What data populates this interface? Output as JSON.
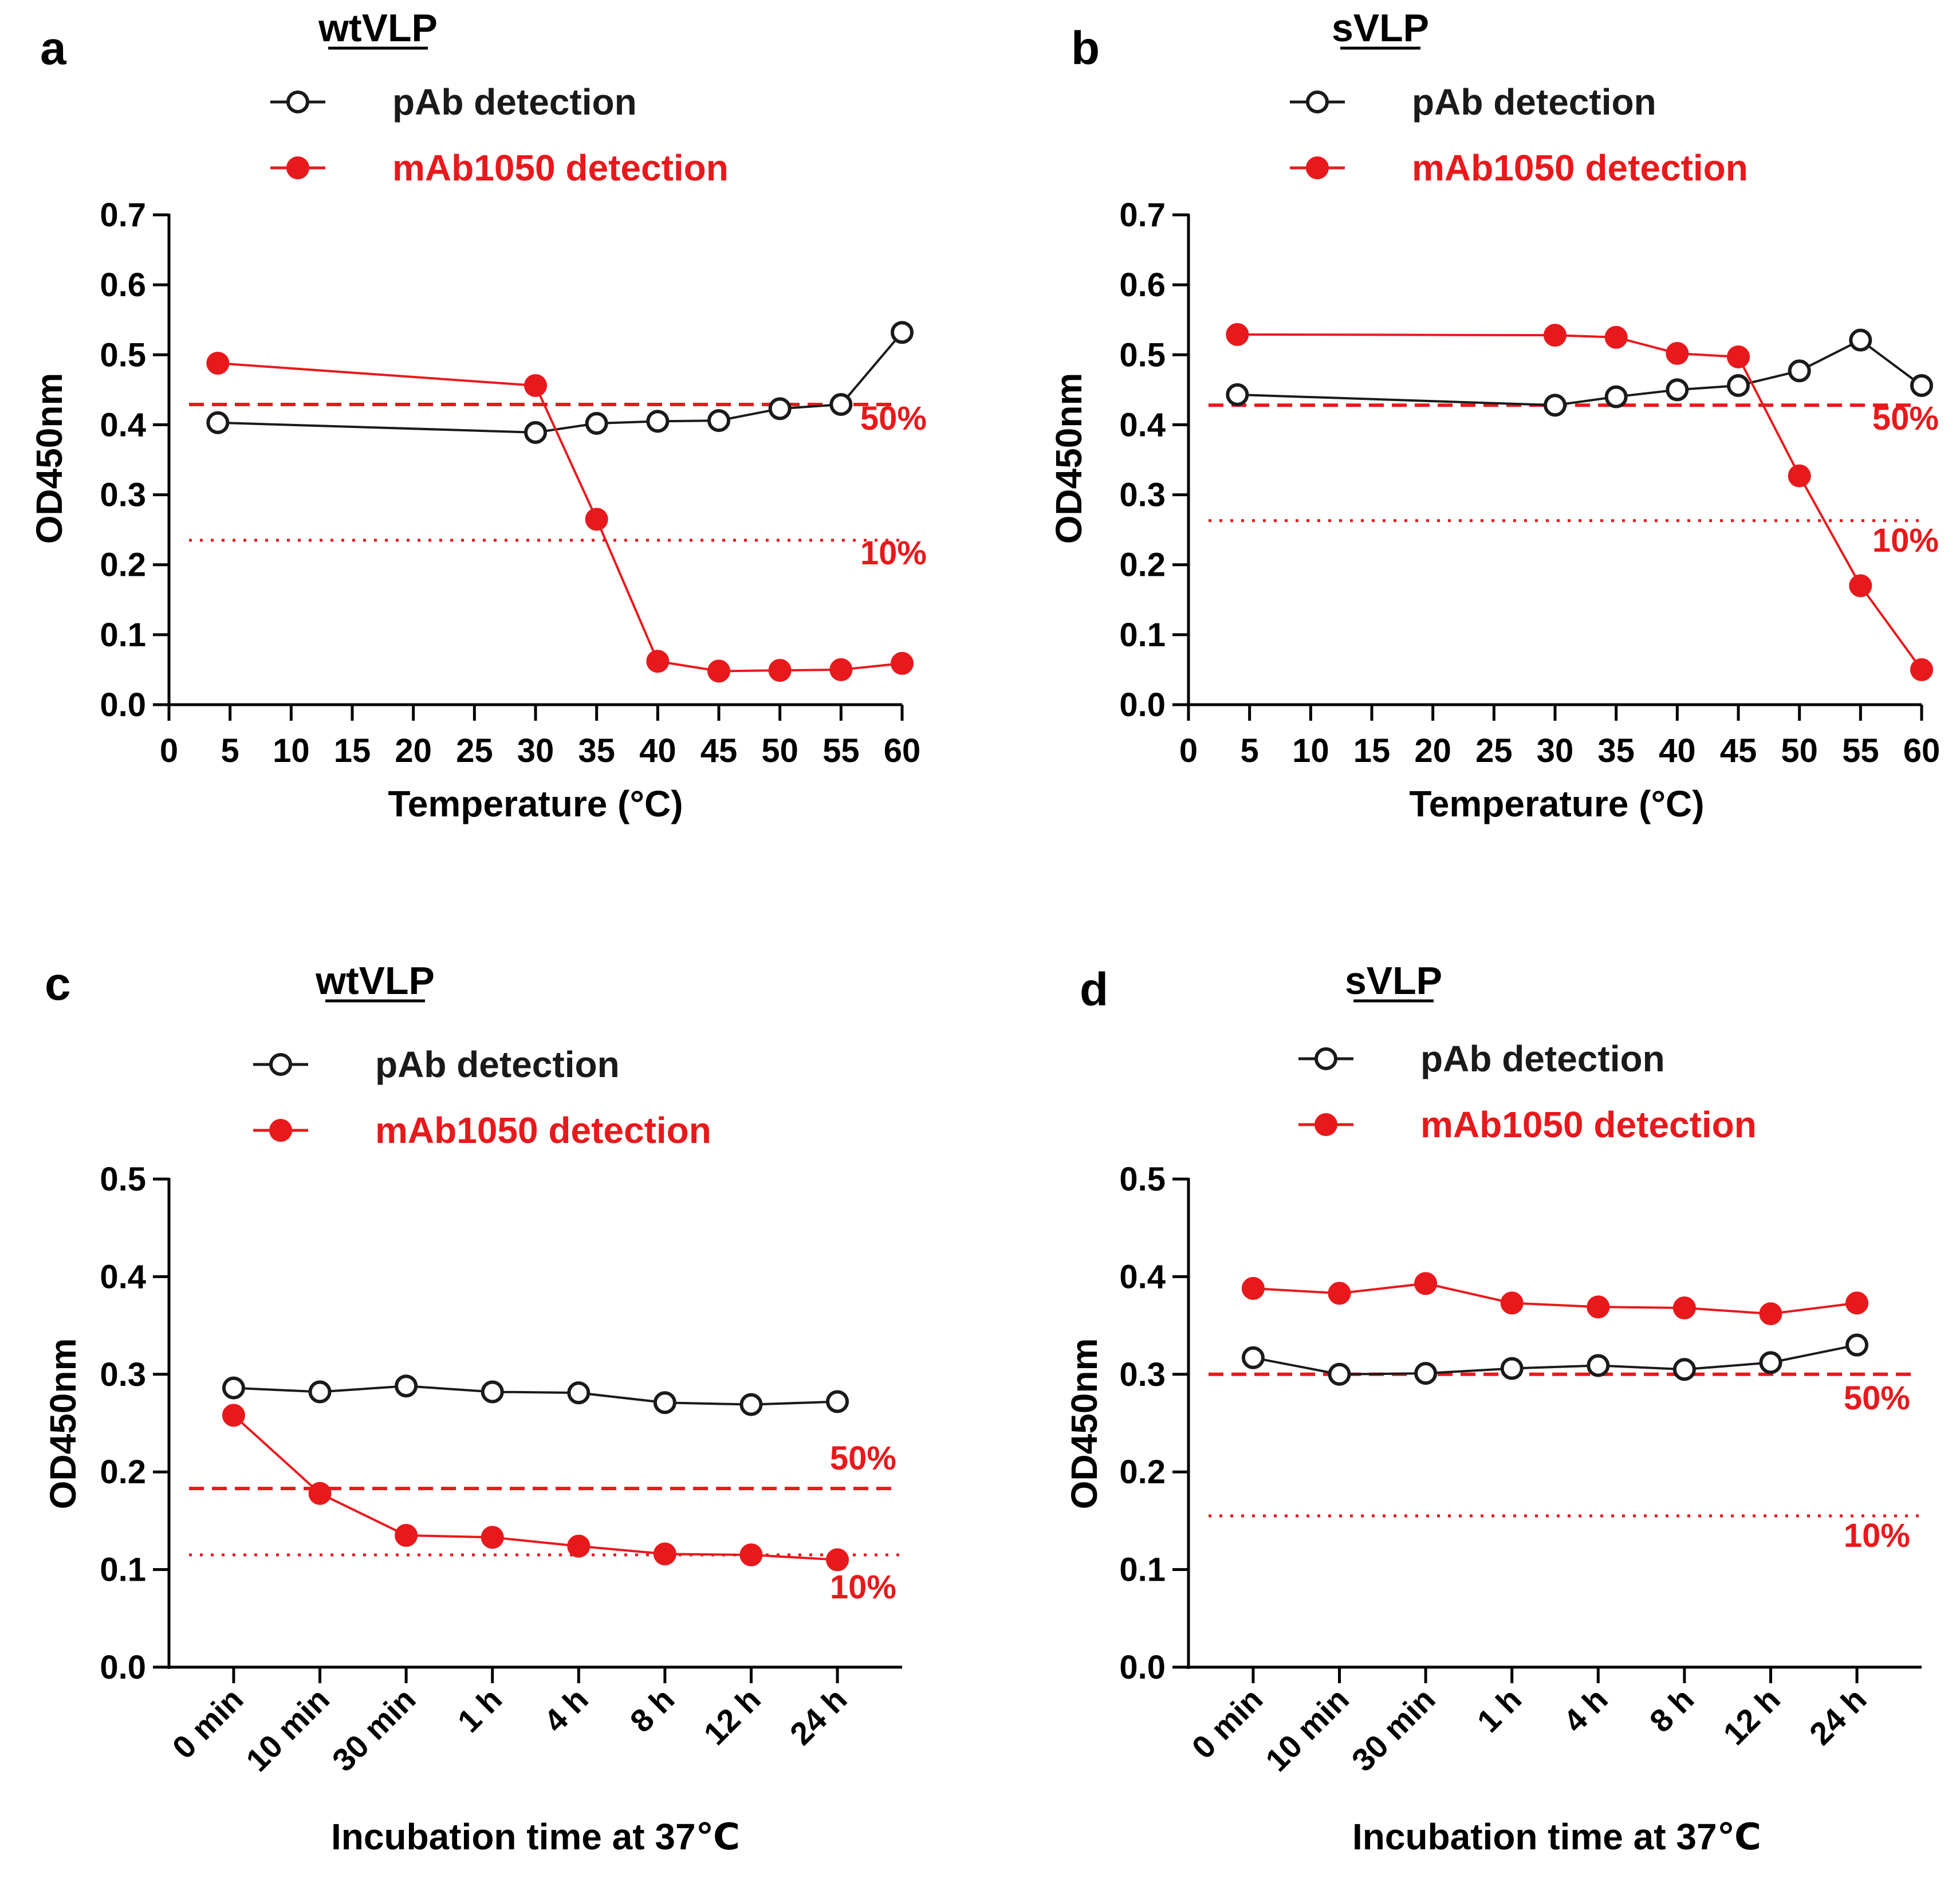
{
  "colors": {
    "black": "#1a1a1a",
    "red": "#e8191c"
  },
  "chart_data": [
    {
      "type": "line",
      "panel_label": "a",
      "title": "wtVLP",
      "xlabel": "Temperature (°C)",
      "ylabel": "OD450nm",
      "x_scale": "linear",
      "xlim": [
        0,
        60
      ],
      "ylim": [
        0,
        0.7
      ],
      "x_ticks": [
        "0",
        "5",
        "10",
        "15",
        "20",
        "25",
        "30",
        "35",
        "40",
        "45",
        "50",
        "55",
        "60"
      ],
      "y_ticks": [
        "0.0",
        "0.1",
        "0.2",
        "0.3",
        "0.4",
        "0.5",
        "0.6",
        "0.7"
      ],
      "series": [
        {
          "name": "pAb detection",
          "color": "#1a1a1a",
          "marker": "open-circle",
          "x": [
            4,
            30,
            35,
            40,
            45,
            50,
            55,
            60
          ],
          "values": [
            0.403,
            0.389,
            0.402,
            0.405,
            0.406,
            0.423,
            0.429,
            0.532
          ]
        },
        {
          "name": "mAb1050 detection",
          "color": "#e8191c",
          "marker": "filled-circle",
          "x": [
            4,
            30,
            35,
            40,
            45,
            50,
            55,
            60
          ],
          "values": [
            0.488,
            0.456,
            0.265,
            0.062,
            0.048,
            0.049,
            0.05,
            0.059
          ]
        }
      ],
      "reference_lines": [
        {
          "label": "50%",
          "value": 0.429,
          "style": "dashed"
        },
        {
          "label": "10%",
          "value": 0.235,
          "style": "dotted"
        }
      ]
    },
    {
      "type": "line",
      "panel_label": "b",
      "title": "sVLP",
      "xlabel": "Temperature (°C)",
      "ylabel": "OD450nm",
      "x_scale": "linear",
      "xlim": [
        0,
        60
      ],
      "ylim": [
        0,
        0.7
      ],
      "x_ticks": [
        "0",
        "5",
        "10",
        "15",
        "20",
        "25",
        "30",
        "35",
        "40",
        "45",
        "50",
        "55",
        "60"
      ],
      "y_ticks": [
        "0.0",
        "0.1",
        "0.2",
        "0.3",
        "0.4",
        "0.5",
        "0.6",
        "0.7"
      ],
      "series": [
        {
          "name": "pAb detection",
          "color": "#1a1a1a",
          "marker": "open-circle",
          "x": [
            4,
            30,
            35,
            40,
            45,
            50,
            55,
            60
          ],
          "values": [
            0.443,
            0.428,
            0.44,
            0.45,
            0.456,
            0.477,
            0.521,
            0.456
          ]
        },
        {
          "name": "mAb1050 detection",
          "color": "#e8191c",
          "marker": "filled-circle",
          "x": [
            4,
            30,
            35,
            40,
            45,
            50,
            55,
            60
          ],
          "values": [
            0.529,
            0.528,
            0.525,
            0.502,
            0.497,
            0.327,
            0.17,
            0.05
          ]
        }
      ],
      "reference_lines": [
        {
          "label": "50%",
          "value": 0.428,
          "style": "dashed"
        },
        {
          "label": "10%",
          "value": 0.263,
          "style": "dotted"
        }
      ]
    },
    {
      "type": "line",
      "panel_label": "c",
      "title": "wtVLP",
      "xlabel": "Incubation time at 37℃",
      "ylabel": "OD450nm",
      "x_scale": "categorical",
      "categories": [
        "0 min",
        "10 min",
        "30 min",
        "1 h",
        "4 h",
        "8 h",
        "12 h",
        "24 h"
      ],
      "ylim": [
        0,
        0.5
      ],
      "y_ticks": [
        "0.0",
        "0.1",
        "0.2",
        "0.3",
        "0.4",
        "0.5"
      ],
      "series": [
        {
          "name": "pAb detection",
          "color": "#1a1a1a",
          "marker": "open-circle",
          "values": [
            0.286,
            0.282,
            0.288,
            0.282,
            0.281,
            0.271,
            0.269,
            0.272
          ]
        },
        {
          "name": "mAb1050 detection",
          "color": "#e8191c",
          "marker": "filled-circle",
          "values": [
            0.258,
            0.178,
            0.135,
            0.133,
            0.124,
            0.116,
            0.115,
            0.11
          ]
        }
      ],
      "reference_lines": [
        {
          "label": "50%",
          "value": 0.183,
          "style": "dashed"
        },
        {
          "label": "10%",
          "value": 0.115,
          "style": "dotted"
        }
      ]
    },
    {
      "type": "line",
      "panel_label": "d",
      "title": "sVLP",
      "xlabel": "Incubation time at 37℃",
      "ylabel": "OD450nm",
      "x_scale": "categorical",
      "categories": [
        "0 min",
        "10 min",
        "30 min",
        "1 h",
        "4 h",
        "8 h",
        "12 h",
        "24 h"
      ],
      "ylim": [
        0,
        0.5
      ],
      "y_ticks": [
        "0.0",
        "0.1",
        "0.2",
        "0.3",
        "0.4",
        "0.5"
      ],
      "series": [
        {
          "name": "pAb detection",
          "color": "#1a1a1a",
          "marker": "open-circle",
          "values": [
            0.317,
            0.3,
            0.301,
            0.306,
            0.309,
            0.305,
            0.312,
            0.33
          ]
        },
        {
          "name": "mAb1050 detection",
          "color": "#e8191c",
          "marker": "filled-circle",
          "values": [
            0.388,
            0.383,
            0.393,
            0.373,
            0.369,
            0.368,
            0.362,
            0.373
          ]
        }
      ],
      "reference_lines": [
        {
          "label": "50%",
          "value": 0.3,
          "style": "dashed"
        },
        {
          "label": "10%",
          "value": 0.155,
          "style": "dotted"
        }
      ]
    }
  ]
}
